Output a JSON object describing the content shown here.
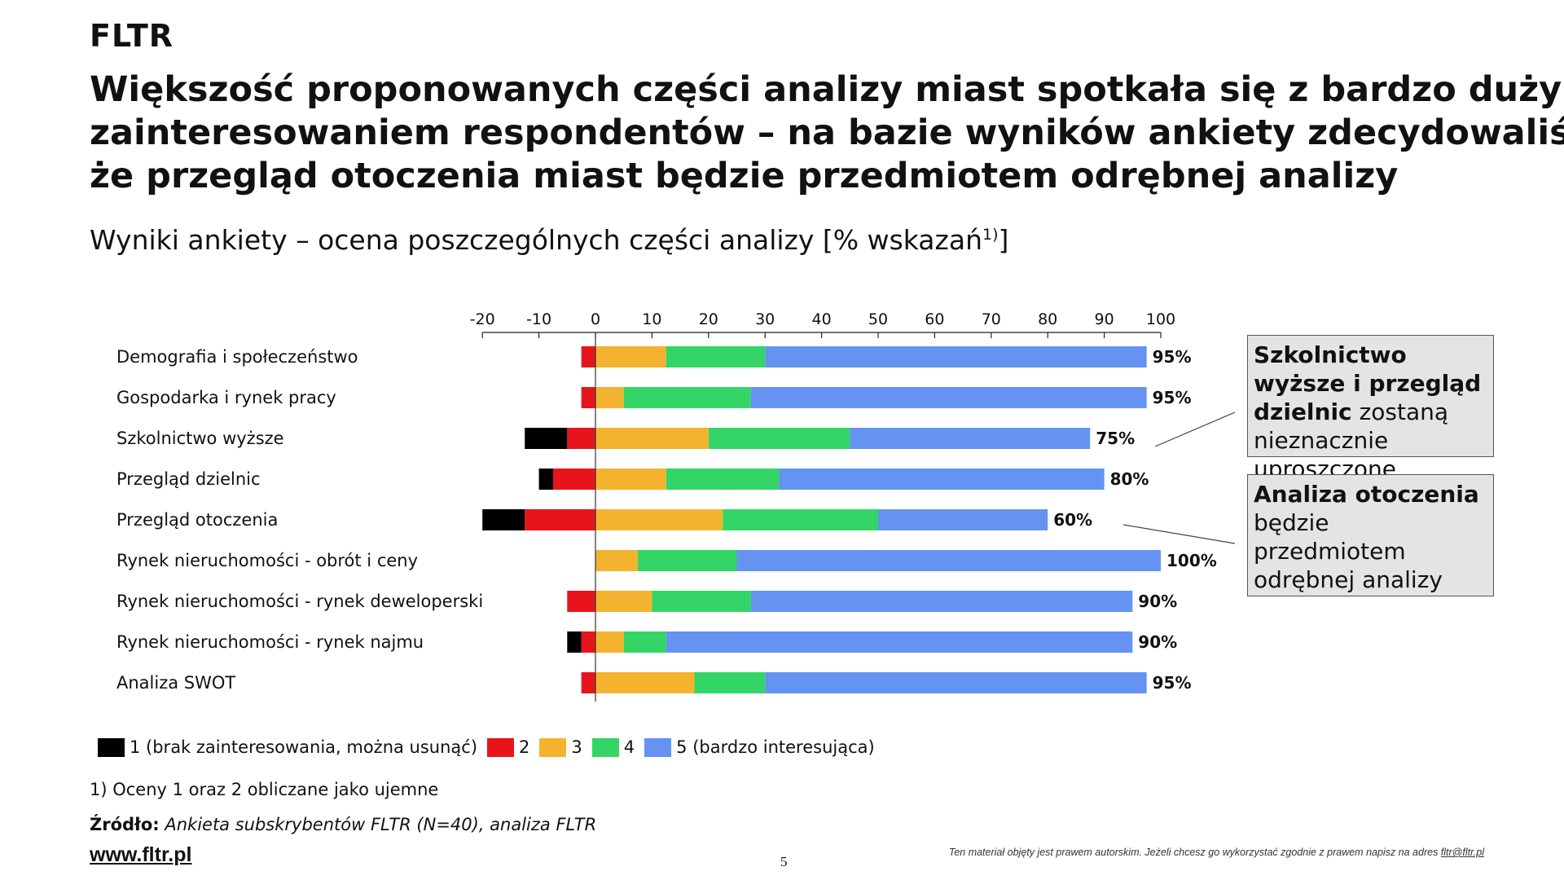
{
  "brand": "FLTR",
  "headline": {
    "lines": [
      "Większość proponowanych części analizy miast spotkała się z bardzo dużym",
      "zainteresowaniem respondentów – na bazie wyników ankiety zdecydowaliśmy,",
      "że przegląd otoczenia miast będzie przedmiotem odrębnej analizy"
    ]
  },
  "subtitle": {
    "text": "Wyniki ankiety – ocena poszczególnych części analizy [% wskazań",
    "sup": "1)",
    "close": "]"
  },
  "chart_data": {
    "type": "bar",
    "orientation": "horizontal",
    "stacked": true,
    "title": "Wyniki ankiety – ocena poszczególnych części analizy [% wskazań1)]",
    "xlim": [
      -20,
      100
    ],
    "xticks": [
      "-20",
      "-10",
      "0",
      "10",
      "20",
      "30",
      "40",
      "50",
      "60",
      "70",
      "80",
      "90",
      "100"
    ],
    "xtick_values": [
      -20,
      -10,
      0,
      10,
      20,
      30,
      40,
      50,
      60,
      70,
      80,
      90,
      100
    ],
    "categories": [
      "Demografia i społeczeństwo",
      "Gospodarka i rynek pracy",
      "Szkolnictwo wyższe",
      "Przegląd dzielnic",
      "Przegląd otoczenia",
      "Rynek nieruchomości - obrót i ceny",
      "Rynek nieruchomości - rynek deweloperski",
      "Rynek nieruchomości - rynek najmu",
      "Analiza SWOT"
    ],
    "series": [
      {
        "name": "1 (brak zainteresowania, można usunąć)",
        "color": "#000000",
        "values": [
          0,
          0,
          -7.5,
          -2.5,
          -7.5,
          0,
          0,
          -2.5,
          0
        ]
      },
      {
        "name": "2",
        "color": "#e8141c",
        "values": [
          -2.5,
          -2.5,
          -5,
          -7.5,
          -12.5,
          0,
          -5,
          -2.5,
          -2.5
        ]
      },
      {
        "name": "3",
        "color": "#f4b32f",
        "values": [
          12.5,
          5,
          20,
          12.5,
          22.5,
          7.5,
          10,
          5,
          17.5
        ]
      },
      {
        "name": "4",
        "color": "#33d566",
        "values": [
          17.5,
          22.5,
          25,
          20,
          27.5,
          17.5,
          17.5,
          7.5,
          12.5
        ]
      },
      {
        "name": "5 (bardzo interesująca)",
        "color": "#6493f2",
        "values": [
          67.5,
          70,
          42.5,
          57.5,
          30,
          75,
          67.5,
          82.5,
          67.5
        ]
      }
    ],
    "net_labels": [
      "95%",
      "95%",
      "75%",
      "80%",
      "60%",
      "100%",
      "90%",
      "90%",
      "95%"
    ]
  },
  "legend": [
    {
      "label": "1 (brak zainteresowania, można usunąć)",
      "color": "#000000"
    },
    {
      "label": "2",
      "color": "#e8141c"
    },
    {
      "label": "3",
      "color": "#f4b32f"
    },
    {
      "label": "4",
      "color": "#33d566"
    },
    {
      "label": "5 (bardzo interesująca)",
      "color": "#6493f2"
    }
  ],
  "callouts": [
    {
      "bold": "Szkolnictwo wyższe i przegląd dzielnic",
      "normal": "zostaną nieznacznie uproszczone"
    },
    {
      "bold": "Analiza otoczenia",
      "normal": "będzie przedmiotem odrębnej analizy"
    }
  ],
  "footnote": "1) Oceny 1 oraz 2 obliczane jako ujemne",
  "source": {
    "label": "Źródło:",
    "text": "Ankieta subskrybentów FLTR (N=40), analiza FLTR"
  },
  "website": "www.fltr.pl",
  "page_number": "5",
  "copyright": {
    "text": "Ten materiał objęty jest prawem  autorskim. Jeżeli chcesz go wykorzystać zgodnie z prawem  napisz na adres ",
    "email": "fltr@fltr.pl"
  }
}
